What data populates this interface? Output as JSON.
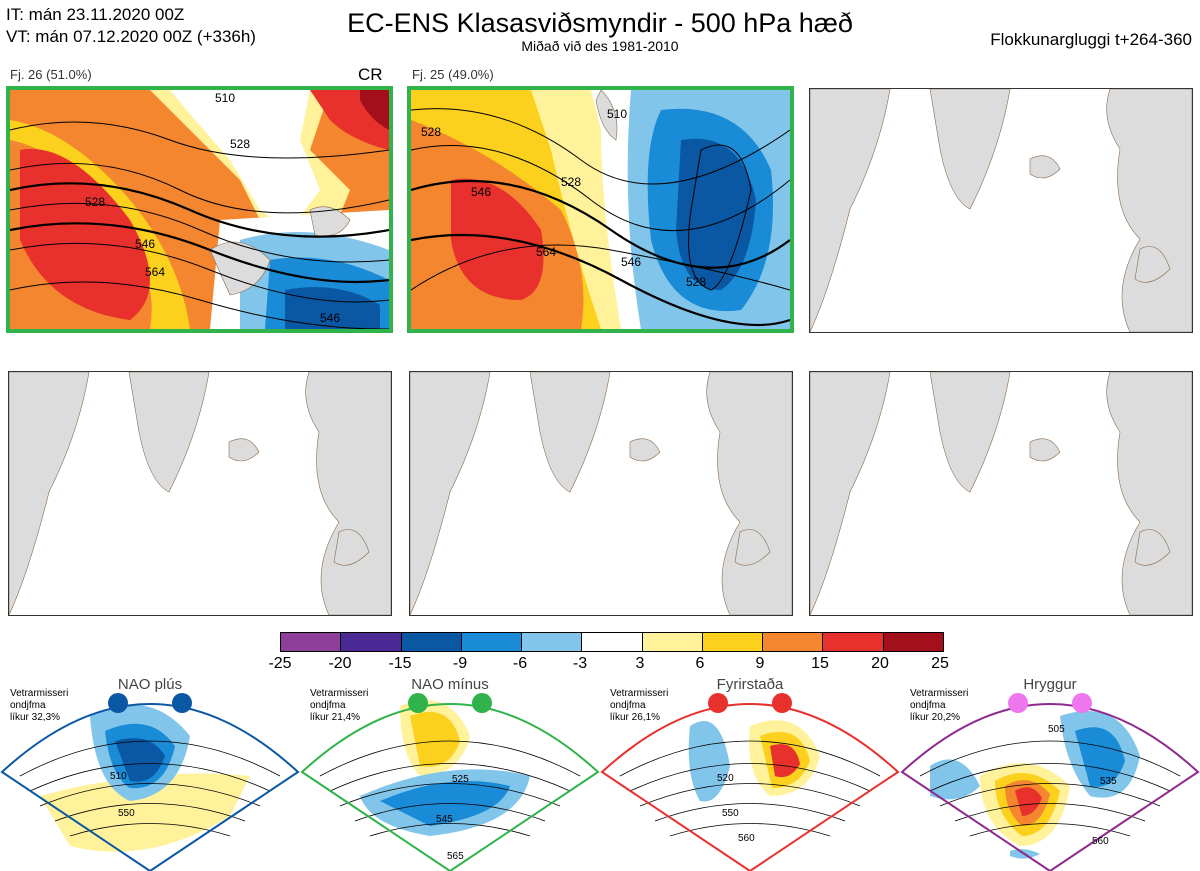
{
  "header": {
    "it_line": "IT: mán 23.11.2020 00Z",
    "vt_line": "VT: mán 07.12.2020 00Z  (+336h)",
    "title": "EC-ENS Klasasviðsmyndir - 500 hPa hæð",
    "subtitle": "Miðað við des 1981-2010",
    "window": "Flokkunargluggi t+264-360"
  },
  "panels": [
    {
      "label": "Fj. 26 (51.0%)",
      "regime_tag": "CR",
      "contours": [
        "510",
        "528",
        "528",
        "546",
        "564",
        "546"
      ]
    },
    {
      "label": "Fj. 25 (49.0%)",
      "regime_tag": "",
      "contours": [
        "528",
        "546",
        "528",
        "564",
        "546",
        "528",
        "510"
      ]
    }
  ],
  "colorbar": {
    "ticks": [
      "-25",
      "-20",
      "-15",
      "-9",
      "-6",
      "-3",
      "3",
      "6",
      "9",
      "15",
      "20",
      "25"
    ],
    "colors": [
      "#8e3f9a",
      "#4b2a96",
      "#0a57a4",
      "#1a8bd6",
      "#82c5ea",
      "#ffffff",
      "#fff29a",
      "#fbd11e",
      "#f3862e",
      "#e8302c",
      "#a3101c"
    ]
  },
  "regimes": [
    {
      "title": "NAO plús",
      "info": [
        "Vetrarmisseri",
        "ondjfma",
        "líkur 32,3%"
      ],
      "contours": [
        "510",
        "550"
      ],
      "color": "#0a57a4",
      "dot": "#0a57a4"
    },
    {
      "title": "NAO mínus",
      "info": [
        "Vetrarmisseri",
        "ondjfma",
        "líkur 21,4%"
      ],
      "contours": [
        "525",
        "545",
        "565"
      ],
      "color": "#2fb34a",
      "dot": "#2fb34a"
    },
    {
      "title": "Fyrirstaða",
      "info": [
        "Vetrarmisseri",
        "ondjfma",
        "líkur 26,1%"
      ],
      "contours": [
        "520",
        "550",
        "560"
      ],
      "color": "#e8302c",
      "dot": "#e8302c"
    },
    {
      "title": "Hryggur",
      "info": [
        "Vetrarmisseri",
        "ondjfma",
        "líkur 20,2%"
      ],
      "contours": [
        "505",
        "535",
        "560"
      ],
      "color": "#8e2a8e",
      "dot": "#ee77ee"
    }
  ]
}
